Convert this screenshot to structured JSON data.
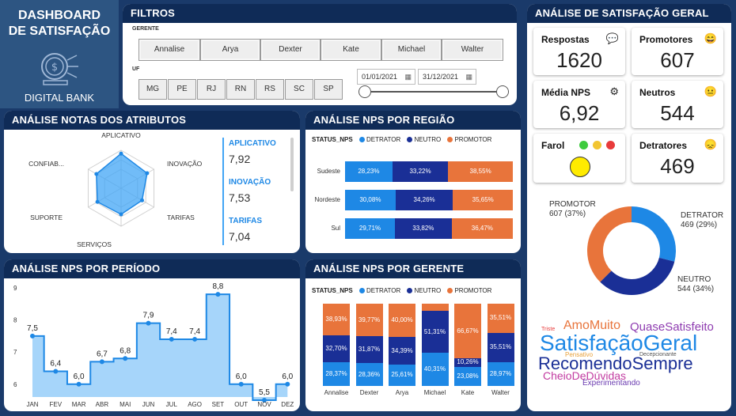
{
  "brand": {
    "title_line1": "DASHBOARD",
    "title_line2": "DE SATISFAÇÃO",
    "subtitle": "DIGITAL BANK"
  },
  "filters": {
    "title": "FILTROS",
    "gerente_label": "GERENTE",
    "gerentes": [
      "Annalise",
      "Arya",
      "Dexter",
      "Kate",
      "Michael",
      "Walter"
    ],
    "uf_label": "UF",
    "ufs": [
      "MG",
      "PE",
      "RJ",
      "RN",
      "RS",
      "SC",
      "SP"
    ],
    "date_start": "01/01/2021",
    "date_end": "31/12/2021"
  },
  "satisfacao": {
    "title": "ANÁLISE DE SATISFAÇÃO GERAL",
    "respostas_label": "Respostas",
    "respostas_value": "1620",
    "promotores_label": "Promotores",
    "promotores_value": "607",
    "media_label": "Média NPS",
    "media_value": "6,92",
    "neutros_label": "Neutros",
    "neutros_value": "544",
    "farol_label": "Farol",
    "detratores_label": "Detratores",
    "detratores_value": "469",
    "colors": {
      "promotor": "#e8743b",
      "detrator": "#1e88e5",
      "neutro": "#1a2f96",
      "farol": "#ffeb00"
    }
  },
  "donut": {
    "promotor_label": "PROMOTOR",
    "promotor_value": "607 (37%)",
    "detrator_label": "DETRATOR",
    "detrator_value": "469 (29%)",
    "neutro_label": "NEUTRO",
    "neutro_value": "544 (34%)",
    "values": {
      "promotor": 607,
      "detrator": 469,
      "neutro": 544
    }
  },
  "wordcloud": {
    "w1": "AmoMuito",
    "w2": "QuaseSatisfeito",
    "w3": "Triste",
    "w4": "SatisfaçãoGeral",
    "w5": "Pensativo",
    "w6": "RecomendoSempre",
    "w7": "Decepcionante",
    "w8": "CheioDeDúvidas",
    "w9": "Experimentando"
  },
  "atributos": {
    "title": "ANÁLISE NOTAS DOS ATRIBUTOS",
    "axes": [
      "APLICATIVO",
      "INOVAÇÃO",
      "TARIFAS",
      "SERVIÇOS",
      "SUPORTE",
      "CONFIAB..."
    ],
    "values": [
      7.92,
      7.53,
      7.04,
      7.2,
      7.3,
      7.4
    ],
    "list": [
      {
        "label": "APLICATIVO",
        "value": "7,92"
      },
      {
        "label": "INOVAÇÃO",
        "value": "7,53"
      },
      {
        "label": "TARIFAS",
        "value": "7,04"
      }
    ]
  },
  "regiao": {
    "title": "ANÁLISE NPS POR REGIÃO",
    "legend_title": "STATUS_NPS",
    "legend": [
      "DETRATOR",
      "NEUTRO",
      "PROMOTOR"
    ],
    "rows": [
      {
        "name": "Sudeste",
        "detrator": "28,23%",
        "neutro": "33,22%",
        "promotor": "38,55%"
      },
      {
        "name": "Nordeste",
        "detrator": "30,08%",
        "neutro": "34,26%",
        "promotor": "35,65%"
      },
      {
        "name": "Sul",
        "detrator": "29,71%",
        "neutro": "33,82%",
        "promotor": "36,47%"
      }
    ]
  },
  "periodo": {
    "title": "ANÁLISE NPS POR PERÍODO",
    "months": [
      "JAN",
      "FEV",
      "MAR",
      "ABR",
      "MAI",
      "JUN",
      "JUL",
      "AGO",
      "SET",
      "OUT",
      "NOV",
      "DEZ"
    ],
    "values": [
      7.5,
      6.4,
      6.0,
      6.7,
      6.8,
      7.9,
      7.4,
      7.4,
      8.8,
      6.0,
      5.5,
      6.0
    ],
    "labels": [
      "7,5",
      "6,4",
      "6,0",
      "6,7",
      "6,8",
      "7,9",
      "7,4",
      "7,4",
      "8,8",
      "6,0",
      "5,5",
      "6,0"
    ],
    "yticks": [
      "9",
      "8",
      "7",
      "6"
    ]
  },
  "gerente": {
    "title": "ANÁLISE NPS POR GERENTE",
    "legend_title": "STATUS_NPS",
    "legend": [
      "DETRATOR",
      "NEUTRO",
      "PROMOTOR"
    ],
    "cols": [
      {
        "name": "Annalise",
        "promotor": "38,93%",
        "neutro": "32,70%",
        "detrator": "28,37%"
      },
      {
        "name": "Dexter",
        "promotor": "39,77%",
        "neutro": "31,87%",
        "detrator": "28,36%"
      },
      {
        "name": "Arya",
        "promotor": "40,00%",
        "neutro": "34,39%",
        "detrator": "25,61%"
      },
      {
        "name": "Michael",
        "promotor": "",
        "neutro": "51,31%",
        "detrator": "40,31%"
      },
      {
        "name": "Kate",
        "promotor": "66,67%",
        "neutro": "10,26%",
        "detrator": "23,08%"
      },
      {
        "name": "Walter",
        "promotor": "35,51%",
        "neutro": "35,51%",
        "detrator": "28,97%"
      }
    ]
  }
}
